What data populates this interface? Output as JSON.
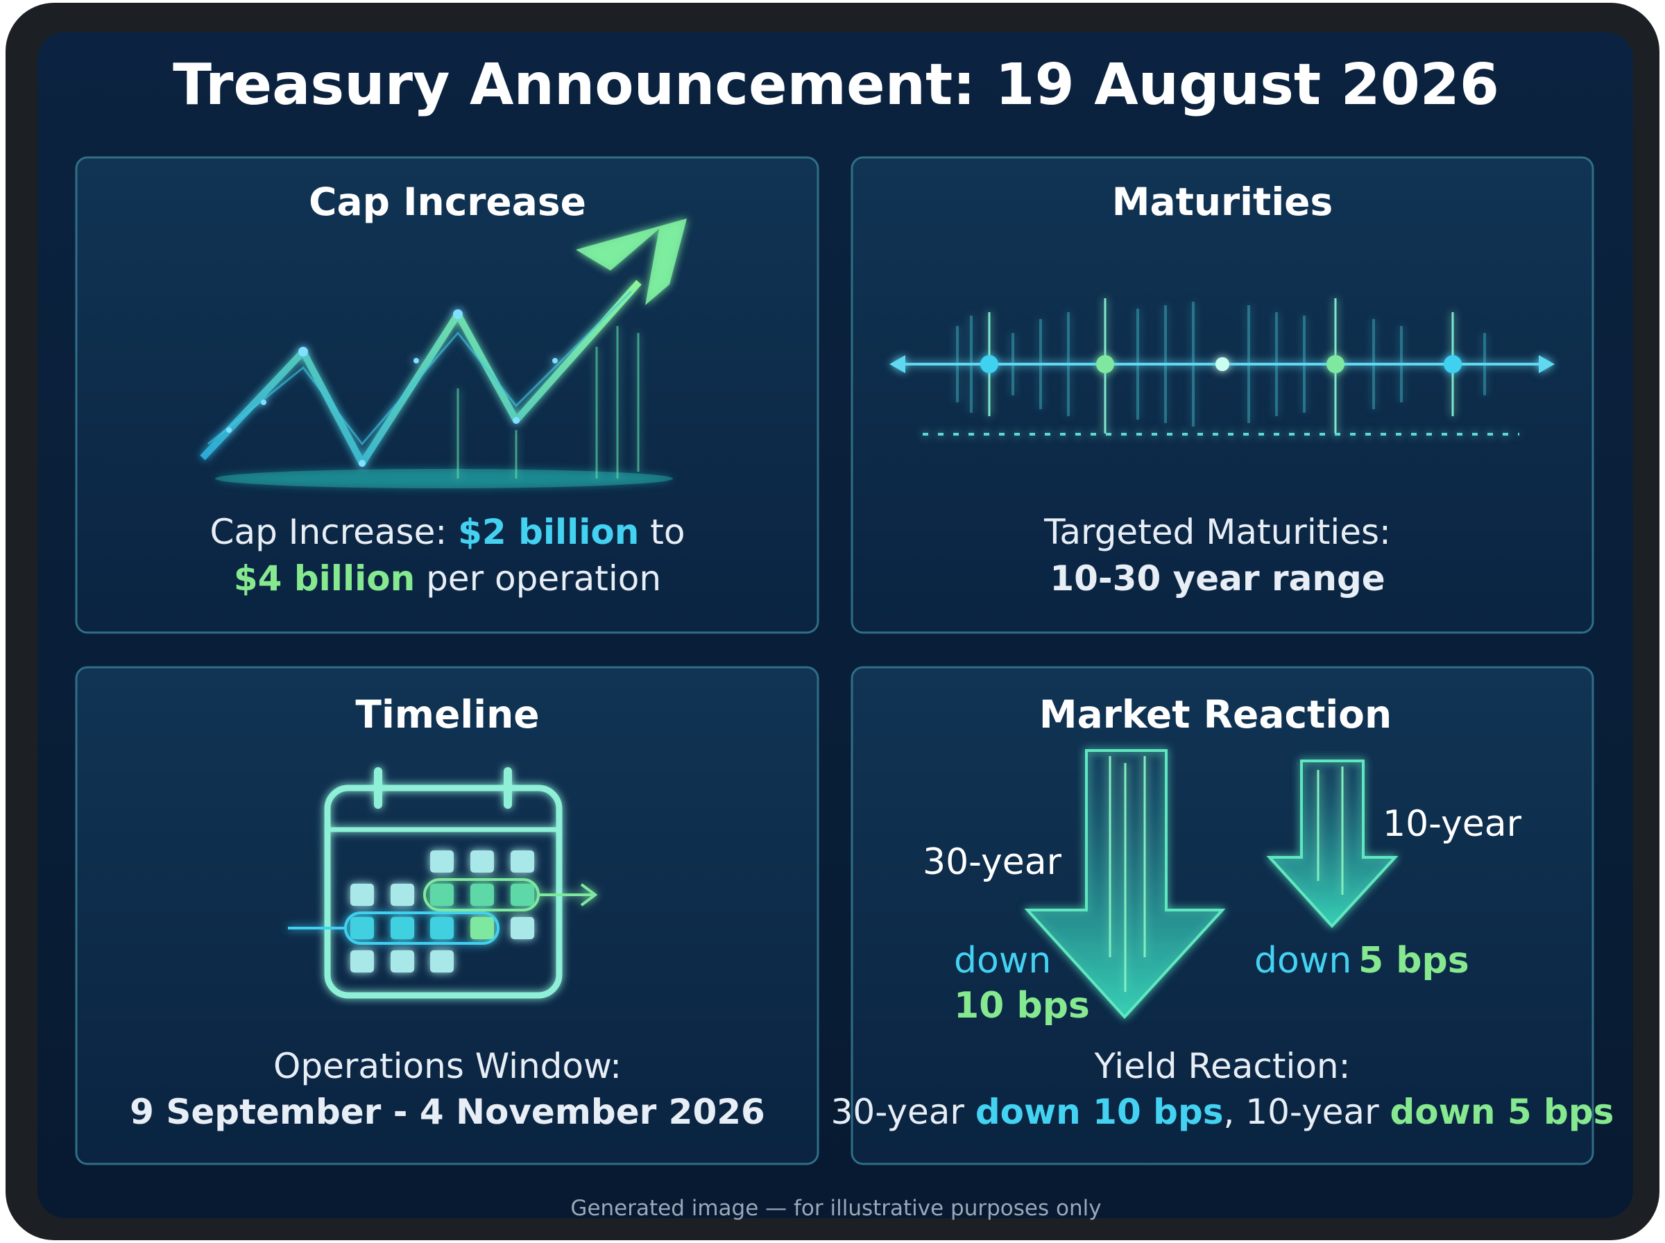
{
  "title": "Treasury Announcement: 19 August 2026",
  "panels": [
    {
      "heading": "Cap Increase",
      "lines": [
        [
          "Cap Increase: ",
          "$2 billion",
          " to"
        ],
        [
          "$4 billion",
          " per operation"
        ]
      ]
    },
    {
      "heading": "Maturities",
      "lines": [
        [
          "Targeted Maturities:"
        ],
        [
          "10-30 year range"
        ]
      ]
    },
    {
      "heading": "Timeline",
      "lines": [
        [
          "Operations Window:"
        ],
        [
          "9 September - 4 November 2026"
        ]
      ]
    },
    {
      "heading": "Market Reaction",
      "graphic_labels": [
        "30-year",
        "down",
        "10 bps",
        "10-year",
        "down",
        "5 bps"
      ],
      "lines": [
        [
          "Yield Reaction:"
        ],
        [
          "30-year ",
          "down 10 bps",
          ", 10-year ",
          "down 5 bps"
        ]
      ]
    }
  ],
  "footer": "Generated image — for illustrative purposes only"
}
